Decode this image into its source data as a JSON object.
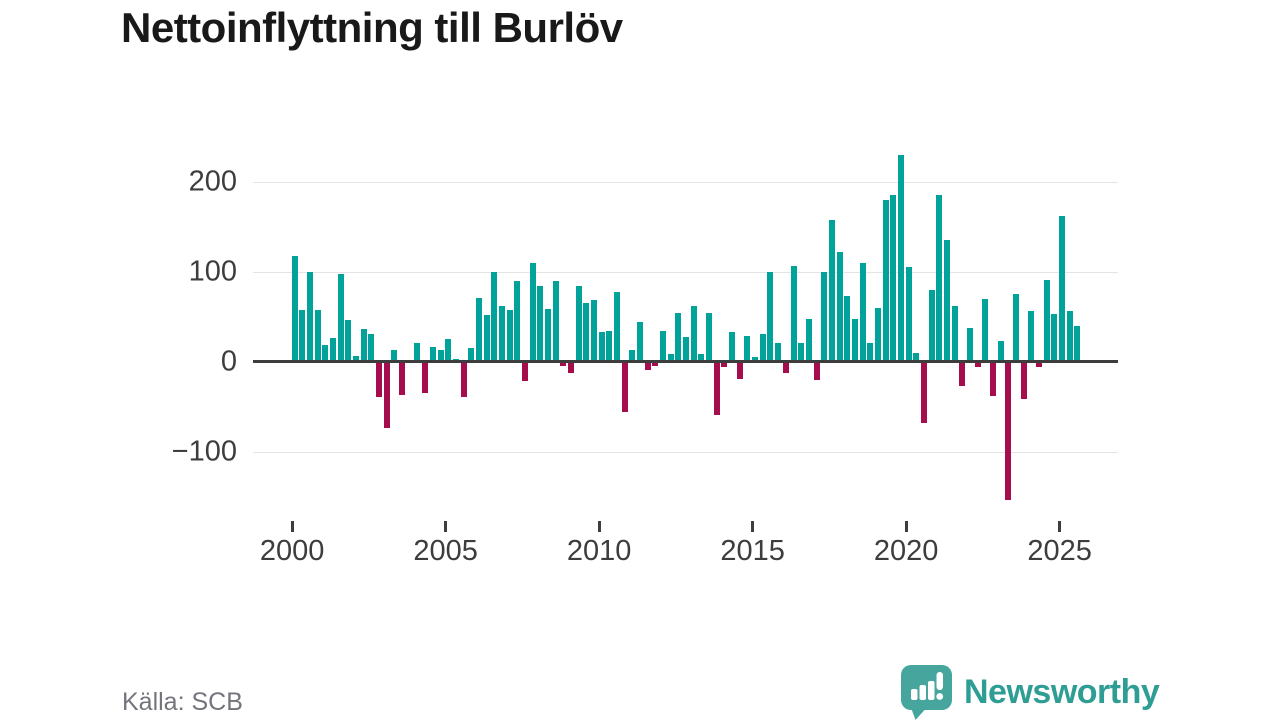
{
  "footer": {
    "source": "Källa: SCB"
  },
  "branding": {
    "wordmark": "Newsworthy",
    "logo_color": "#46a59c",
    "wordmark_color": "#2e9e95"
  },
  "chart_data": {
    "type": "bar",
    "title": "Nettoinflyttning till Burlöv",
    "xlabel": "",
    "ylabel": "",
    "frequency": "quarterly",
    "x_start": "2000 Q1",
    "x_end": "2025 Q3",
    "ylim": [
      -160,
      240
    ],
    "grid": true,
    "positive_color": "#00a29a",
    "negative_color": "#a50d4d",
    "y_ticks": [
      {
        "label": "200",
        "value": 200
      },
      {
        "label": "100",
        "value": 100
      },
      {
        "label": "0",
        "value": 0
      },
      {
        "label": "−100",
        "value": -100
      }
    ],
    "x_ticks": [
      {
        "label": "2000",
        "year": 2000
      },
      {
        "label": "2005",
        "year": 2005
      },
      {
        "label": "2010",
        "year": 2010
      },
      {
        "label": "2015",
        "year": 2015
      },
      {
        "label": "2020",
        "year": 2020
      },
      {
        "label": "2025",
        "year": 2025
      }
    ],
    "points": [
      [
        "2000 Q1",
        118
      ],
      [
        "2000 Q2",
        57
      ],
      [
        "2000 Q3",
        100
      ],
      [
        "2000 Q4",
        57
      ],
      [
        "2001 Q1",
        19
      ],
      [
        "2001 Q2",
        26
      ],
      [
        "2001 Q3",
        98
      ],
      [
        "2001 Q4",
        46
      ],
      [
        "2002 Q1",
        6
      ],
      [
        "2002 Q2",
        36
      ],
      [
        "2002 Q3",
        31
      ],
      [
        "2002 Q4",
        -39
      ],
      [
        "2003 Q1",
        -74
      ],
      [
        "2003 Q2",
        13
      ],
      [
        "2003 Q3",
        -37
      ],
      [
        "2003 Q4",
        0
      ],
      [
        "2004 Q1",
        21
      ],
      [
        "2004 Q2",
        -35
      ],
      [
        "2004 Q3",
        16
      ],
      [
        "2004 Q4",
        13
      ],
      [
        "2005 Q1",
        25
      ],
      [
        "2005 Q2",
        3
      ],
      [
        "2005 Q3",
        -39
      ],
      [
        "2005 Q4",
        15
      ],
      [
        "2006 Q1",
        71
      ],
      [
        "2006 Q2",
        52
      ],
      [
        "2006 Q3",
        100
      ],
      [
        "2006 Q4",
        62
      ],
      [
        "2007 Q1",
        58
      ],
      [
        "2007 Q2",
        90
      ],
      [
        "2007 Q3",
        -21
      ],
      [
        "2007 Q4",
        110
      ],
      [
        "2008 Q1",
        84
      ],
      [
        "2008 Q2",
        59
      ],
      [
        "2008 Q3",
        90
      ],
      [
        "2008 Q4",
        -5
      ],
      [
        "2009 Q1",
        -13
      ],
      [
        "2009 Q2",
        84
      ],
      [
        "2009 Q3",
        65
      ],
      [
        "2009 Q4",
        69
      ],
      [
        "2010 Q1",
        33
      ],
      [
        "2010 Q2",
        34
      ],
      [
        "2010 Q3",
        78
      ],
      [
        "2010 Q4",
        -56
      ],
      [
        "2011 Q1",
        13
      ],
      [
        "2011 Q2",
        44
      ],
      [
        "2011 Q3",
        -9
      ],
      [
        "2011 Q4",
        -5
      ],
      [
        "2012 Q1",
        34
      ],
      [
        "2012 Q2",
        9
      ],
      [
        "2012 Q3",
        54
      ],
      [
        "2012 Q4",
        28
      ],
      [
        "2013 Q1",
        62
      ],
      [
        "2013 Q2",
        9
      ],
      [
        "2013 Q3",
        54
      ],
      [
        "2013 Q4",
        -59
      ],
      [
        "2014 Q1",
        -6
      ],
      [
        "2014 Q2",
        33
      ],
      [
        "2014 Q3",
        -19
      ],
      [
        "2014 Q4",
        29
      ],
      [
        "2015 Q1",
        5
      ],
      [
        "2015 Q2",
        31
      ],
      [
        "2015 Q3",
        100
      ],
      [
        "2015 Q4",
        21
      ],
      [
        "2016 Q1",
        -13
      ],
      [
        "2016 Q2",
        106
      ],
      [
        "2016 Q3",
        21
      ],
      [
        "2016 Q4",
        47
      ],
      [
        "2017 Q1",
        -20
      ],
      [
        "2017 Q2",
        100
      ],
      [
        "2017 Q3",
        158
      ],
      [
        "2017 Q4",
        122
      ],
      [
        "2018 Q1",
        73
      ],
      [
        "2018 Q2",
        47
      ],
      [
        "2018 Q3",
        110
      ],
      [
        "2018 Q4",
        21
      ],
      [
        "2019 Q1",
        60
      ],
      [
        "2019 Q2",
        180
      ],
      [
        "2019 Q3",
        185
      ],
      [
        "2019 Q4",
        230
      ],
      [
        "2020 Q1",
        105
      ],
      [
        "2020 Q2",
        10
      ],
      [
        "2020 Q3",
        -68
      ],
      [
        "2020 Q4",
        80
      ],
      [
        "2021 Q1",
        185
      ],
      [
        "2021 Q2",
        135
      ],
      [
        "2021 Q3",
        62
      ],
      [
        "2021 Q4",
        -27
      ],
      [
        "2022 Q1",
        37
      ],
      [
        "2022 Q2",
        -6
      ],
      [
        "2022 Q3",
        70
      ],
      [
        "2022 Q4",
        -38
      ],
      [
        "2023 Q1",
        23
      ],
      [
        "2023 Q2",
        -154
      ],
      [
        "2023 Q3",
        75
      ],
      [
        "2023 Q4",
        -41
      ],
      [
        "2024 Q1",
        56
      ],
      [
        "2024 Q2",
        -6
      ],
      [
        "2024 Q3",
        91
      ],
      [
        "2024 Q4",
        53
      ],
      [
        "2025 Q1",
        162
      ],
      [
        "2025 Q2",
        56
      ],
      [
        "2025 Q3",
        40
      ]
    ]
  }
}
